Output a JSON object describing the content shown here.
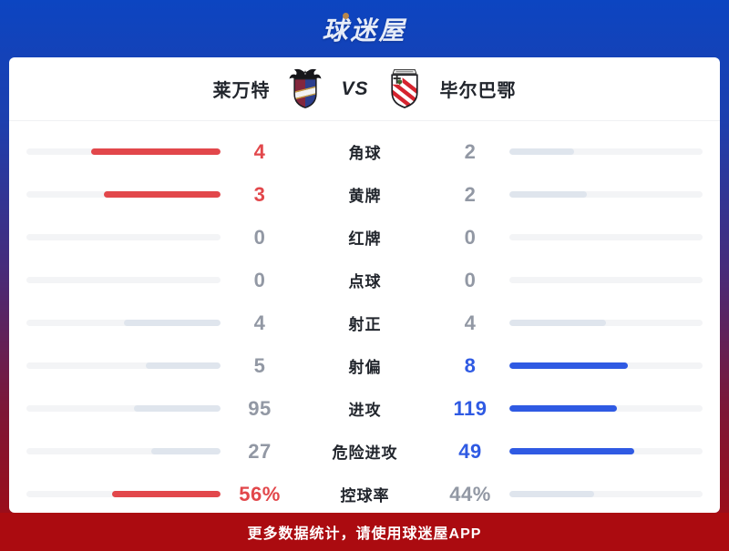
{
  "header": {
    "logo_text": "球迷屋"
  },
  "match": {
    "home_name": "莱万特",
    "vs_label": "VS",
    "away_name": "毕尔巴鄂"
  },
  "stats": {
    "rows": [
      {
        "label": "角球",
        "home": {
          "value": "4",
          "color": "red",
          "fill": "red",
          "pct": 66.7
        },
        "away": {
          "value": "2",
          "color": "gray",
          "fill": "light",
          "pct": 33.3
        }
      },
      {
        "label": "黄牌",
        "home": {
          "value": "3",
          "color": "red",
          "fill": "red",
          "pct": 60
        },
        "away": {
          "value": "2",
          "color": "gray",
          "fill": "light",
          "pct": 40
        }
      },
      {
        "label": "红牌",
        "home": {
          "value": "0",
          "color": "gray",
          "fill": "none",
          "pct": 0
        },
        "away": {
          "value": "0",
          "color": "gray",
          "fill": "none",
          "pct": 0
        }
      },
      {
        "label": "点球",
        "home": {
          "value": "0",
          "color": "gray",
          "fill": "none",
          "pct": 0
        },
        "away": {
          "value": "0",
          "color": "gray",
          "fill": "none",
          "pct": 0
        }
      },
      {
        "label": "射正",
        "home": {
          "value": "4",
          "color": "gray",
          "fill": "light",
          "pct": 50
        },
        "away": {
          "value": "4",
          "color": "gray",
          "fill": "light",
          "pct": 50
        }
      },
      {
        "label": "射偏",
        "home": {
          "value": "5",
          "color": "gray",
          "fill": "light",
          "pct": 38.5
        },
        "away": {
          "value": "8",
          "color": "blue",
          "fill": "blue",
          "pct": 61.5
        }
      },
      {
        "label": "进攻",
        "home": {
          "value": "95",
          "color": "gray",
          "fill": "light",
          "pct": 44.4
        },
        "away": {
          "value": "119",
          "color": "blue",
          "fill": "blue",
          "pct": 55.6
        }
      },
      {
        "label": "危险进攻",
        "home": {
          "value": "27",
          "color": "gray",
          "fill": "light",
          "pct": 35.5
        },
        "away": {
          "value": "49",
          "color": "blue",
          "fill": "blue",
          "pct": 64.5
        }
      },
      {
        "label": "控球率",
        "home": {
          "value": "56%",
          "color": "red",
          "fill": "red",
          "pct": 56
        },
        "away": {
          "value": "44%",
          "color": "gray",
          "fill": "light",
          "pct": 44
        }
      }
    ]
  },
  "footer": {
    "text": "更多数据统计，请使用球迷屋APP"
  },
  "colors": {
    "home_accent": "#e2474b",
    "away_accent": "#2f5ae3",
    "bar_track": "#f3f4f6",
    "bar_neutral_fill": "#dfe5ed",
    "footer_bg": "#ab0b10",
    "bg_gradient_top": "#0c45c1",
    "bg_gradient_bottom": "#a50a10"
  }
}
